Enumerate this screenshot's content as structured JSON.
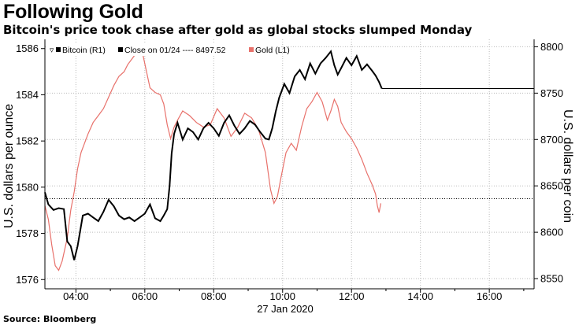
{
  "header": {
    "title": "Following Gold",
    "subtitle": "Bitcoin's price took chase after gold as global stocks slumped Monday"
  },
  "footer": {
    "source": "Source: Bloomberg"
  },
  "legend": {
    "bitcoin": "Bitcoin (R1)",
    "close": "Close on 01/24 ---- 8497.52",
    "gold": "Gold (L1)"
  },
  "chart_data": {
    "type": "line",
    "date_label": "27 Jan 2020",
    "x_ticks": [
      "04:00",
      "06:00",
      "08:00",
      "10:00",
      "12:00",
      "14:00",
      "16:00"
    ],
    "x_tick_hours": [
      4,
      6,
      8,
      10,
      12,
      14,
      16
    ],
    "xlim_hours": [
      3.1,
      17.3
    ],
    "left_axis": {
      "label": "U.S. dollars per ounce",
      "ticks": [
        1576,
        1578,
        1580,
        1582,
        1584,
        1586
      ],
      "ylim": [
        1575.6,
        1586.4
      ]
    },
    "right_axis": {
      "label": "U.S. dollars per coin",
      "ticks": [
        8550,
        8600,
        8650,
        8700,
        8750,
        8800
      ],
      "ylim": [
        8539,
        8808
      ]
    },
    "reference_line": {
      "axis": "left",
      "value": 1579.5,
      "style": "dotted"
    },
    "colors": {
      "gold": "#e8716b",
      "bitcoin": "#000000",
      "grid": "#bbbbbb"
    },
    "grid": true,
    "series": [
      {
        "name": "Gold (L1)",
        "axis": "left",
        "x": [
          3.1,
          3.2,
          3.3,
          3.4,
          3.5,
          3.6,
          3.75,
          3.85,
          3.95,
          4.05,
          4.15,
          4.25,
          4.35,
          4.5,
          4.65,
          4.8,
          4.95,
          5.1,
          5.25,
          5.4,
          5.5,
          5.65,
          5.8,
          5.95,
          6.05,
          6.15,
          6.3,
          6.45,
          6.55,
          6.65,
          6.75,
          6.85,
          6.95,
          7.1,
          7.3,
          7.5,
          7.7,
          7.9,
          8.1,
          8.3,
          8.5,
          8.7,
          8.9,
          9.1,
          9.3,
          9.5,
          9.65,
          9.75,
          9.85,
          9.95,
          10.1,
          10.25,
          10.4,
          10.55,
          10.7,
          10.85,
          11.0,
          11.15,
          11.3,
          11.4,
          11.5,
          11.6,
          11.7,
          11.85,
          12.0,
          12.15,
          12.3,
          12.45,
          12.6,
          12.7,
          12.75,
          12.8,
          12.85
        ],
        "values": [
          1579.2,
          1578.6,
          1577.5,
          1576.6,
          1576.4,
          1576.8,
          1577.8,
          1579.0,
          1579.8,
          1580.8,
          1581.5,
          1581.9,
          1582.3,
          1582.8,
          1583.1,
          1583.4,
          1583.9,
          1584.4,
          1584.8,
          1585.0,
          1585.3,
          1585.6,
          1585.9,
          1585.7,
          1585.0,
          1584.3,
          1584.1,
          1584.0,
          1583.6,
          1582.7,
          1582.1,
          1582.6,
          1582.9,
          1583.3,
          1583.1,
          1582.8,
          1582.6,
          1582.7,
          1583.4,
          1583.0,
          1582.2,
          1582.6,
          1583.2,
          1583.0,
          1582.5,
          1581.5,
          1579.9,
          1579.3,
          1579.6,
          1580.4,
          1581.5,
          1581.9,
          1581.6,
          1582.6,
          1583.4,
          1583.7,
          1584.1,
          1583.7,
          1582.9,
          1583.3,
          1583.8,
          1583.5,
          1582.8,
          1582.4,
          1582.1,
          1581.7,
          1581.2,
          1580.6,
          1580.1,
          1579.7,
          1579.2,
          1578.9,
          1579.3
        ]
      },
      {
        "name": "Bitcoin (R1)",
        "axis": "right",
        "x": [
          3.1,
          3.2,
          3.35,
          3.5,
          3.65,
          3.75,
          3.85,
          3.95,
          4.05,
          4.2,
          4.35,
          4.5,
          4.65,
          4.8,
          4.95,
          5.1,
          5.25,
          5.4,
          5.55,
          5.7,
          5.85,
          6.0,
          6.15,
          6.3,
          6.45,
          6.55,
          6.65,
          6.72,
          6.78,
          6.85,
          6.95,
          7.1,
          7.25,
          7.4,
          7.55,
          7.7,
          7.85,
          8.0,
          8.15,
          8.3,
          8.45,
          8.6,
          8.75,
          8.9,
          9.05,
          9.2,
          9.35,
          9.5,
          9.6,
          9.7,
          9.8,
          9.9,
          10.05,
          10.2,
          10.35,
          10.5,
          10.65,
          10.8,
          10.95,
          11.1,
          11.25,
          11.4,
          11.5,
          11.6,
          11.7,
          11.85,
          12.0,
          12.15,
          12.3,
          12.45,
          12.6,
          12.7,
          12.8,
          12.88
        ],
        "values": [
          8643,
          8630,
          8624,
          8626,
          8625,
          8590,
          8585,
          8570,
          8585,
          8618,
          8620,
          8616,
          8612,
          8622,
          8635,
          8628,
          8618,
          8614,
          8616,
          8612,
          8616,
          8620,
          8630,
          8615,
          8612,
          8618,
          8625,
          8650,
          8685,
          8706,
          8718,
          8700,
          8712,
          8708,
          8700,
          8712,
          8718,
          8712,
          8704,
          8718,
          8726,
          8715,
          8706,
          8712,
          8720,
          8716,
          8708,
          8701,
          8700,
          8712,
          8730,
          8745,
          8760,
          8750,
          8768,
          8775,
          8765,
          8782,
          8771,
          8782,
          8788,
          8795,
          8780,
          8770,
          8777,
          8788,
          8780,
          8790,
          8775,
          8781,
          8774,
          8769,
          8762,
          8755
        ]
      }
    ],
    "close_line": {
      "value": 8755,
      "from_hour": 12.88,
      "to_hour": 17.3,
      "style": "solid-thin"
    }
  }
}
